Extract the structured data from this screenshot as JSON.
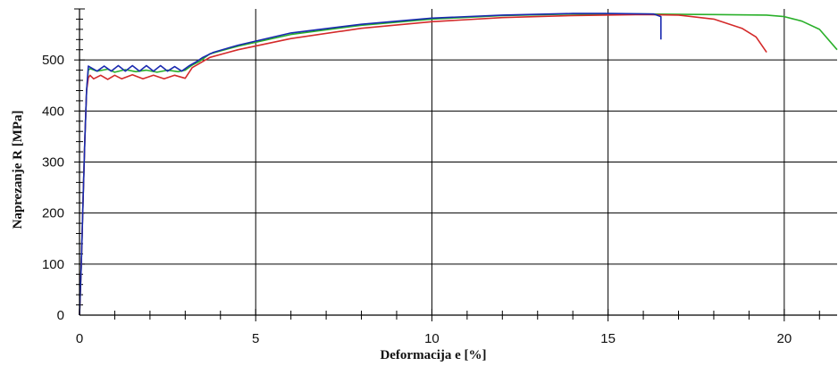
{
  "chart_data": {
    "type": "line",
    "title": "",
    "xlabel": "Deformacija e [%]",
    "ylabel": "Naprezanje R [MPa]",
    "xlim": [
      0,
      21.5
    ],
    "ylim": [
      0,
      600
    ],
    "x_ticks": [
      0,
      5,
      10,
      15,
      20
    ],
    "x_tick_labels": [
      "0",
      "5",
      "10",
      "15",
      "20"
    ],
    "y_ticks": [
      0,
      100,
      200,
      300,
      400,
      500
    ],
    "y_tick_labels": [
      "0",
      "100",
      "200",
      "300",
      "400",
      "500"
    ],
    "grid": true,
    "series": [
      {
        "color": "#2ab02a",
        "points": [
          [
            0,
            0
          ],
          [
            0.05,
            100
          ],
          [
            0.1,
            220
          ],
          [
            0.15,
            340
          ],
          [
            0.2,
            440
          ],
          [
            0.25,
            480
          ],
          [
            0.3,
            483
          ],
          [
            0.5,
            478
          ],
          [
            0.8,
            482
          ],
          [
            1.0,
            476
          ],
          [
            1.3,
            481
          ],
          [
            1.6,
            477
          ],
          [
            1.9,
            480
          ],
          [
            2.2,
            476
          ],
          [
            2.5,
            480
          ],
          [
            2.8,
            477
          ],
          [
            3.0,
            480
          ],
          [
            3.2,
            490
          ],
          [
            3.4,
            497
          ],
          [
            3.7,
            512
          ],
          [
            4.5,
            527
          ],
          [
            6,
            550
          ],
          [
            8,
            568
          ],
          [
            10,
            580
          ],
          [
            12,
            587
          ],
          [
            14,
            590
          ],
          [
            16,
            590
          ],
          [
            18,
            589
          ],
          [
            19.5,
            588
          ],
          [
            20,
            585
          ],
          [
            20.5,
            576
          ],
          [
            21,
            560
          ],
          [
            21.5,
            520
          ]
        ]
      },
      {
        "color": "#d42a2a",
        "points": [
          [
            0,
            0
          ],
          [
            0.05,
            100
          ],
          [
            0.1,
            220
          ],
          [
            0.15,
            340
          ],
          [
            0.2,
            440
          ],
          [
            0.25,
            465
          ],
          [
            0.3,
            470
          ],
          [
            0.4,
            463
          ],
          [
            0.6,
            470
          ],
          [
            0.8,
            462
          ],
          [
            1.0,
            470
          ],
          [
            1.2,
            463
          ],
          [
            1.5,
            471
          ],
          [
            1.8,
            463
          ],
          [
            2.1,
            470
          ],
          [
            2.4,
            463
          ],
          [
            2.7,
            470
          ],
          [
            3.0,
            464
          ],
          [
            3.2,
            485
          ],
          [
            3.4,
            493
          ],
          [
            3.7,
            505
          ],
          [
            4.5,
            520
          ],
          [
            6,
            542
          ],
          [
            8,
            562
          ],
          [
            10,
            575
          ],
          [
            12,
            583
          ],
          [
            14,
            587
          ],
          [
            16,
            589
          ],
          [
            17,
            588
          ],
          [
            18,
            580
          ],
          [
            18.8,
            562
          ],
          [
            19.2,
            545
          ],
          [
            19.5,
            515
          ]
        ]
      },
      {
        "color": "#1a2ab0",
        "points": [
          [
            0,
            0
          ],
          [
            0.05,
            100
          ],
          [
            0.1,
            220
          ],
          [
            0.15,
            340
          ],
          [
            0.2,
            440
          ],
          [
            0.25,
            488
          ],
          [
            0.3,
            486
          ],
          [
            0.5,
            478
          ],
          [
            0.7,
            488
          ],
          [
            0.9,
            478
          ],
          [
            1.1,
            489
          ],
          [
            1.3,
            478
          ],
          [
            1.5,
            489
          ],
          [
            1.7,
            478
          ],
          [
            1.9,
            489
          ],
          [
            2.1,
            478
          ],
          [
            2.3,
            489
          ],
          [
            2.5,
            478
          ],
          [
            2.7,
            487
          ],
          [
            2.9,
            478
          ],
          [
            3.1,
            488
          ],
          [
            3.3,
            496
          ],
          [
            3.5,
            505
          ],
          [
            3.8,
            515
          ],
          [
            4.5,
            529
          ],
          [
            6,
            553
          ],
          [
            8,
            570
          ],
          [
            10,
            582
          ],
          [
            12,
            588
          ],
          [
            14,
            591
          ],
          [
            15,
            591
          ],
          [
            16.3,
            590
          ],
          [
            16.5,
            585
          ],
          [
            16.5,
            560
          ],
          [
            16.5,
            540
          ]
        ]
      }
    ]
  }
}
